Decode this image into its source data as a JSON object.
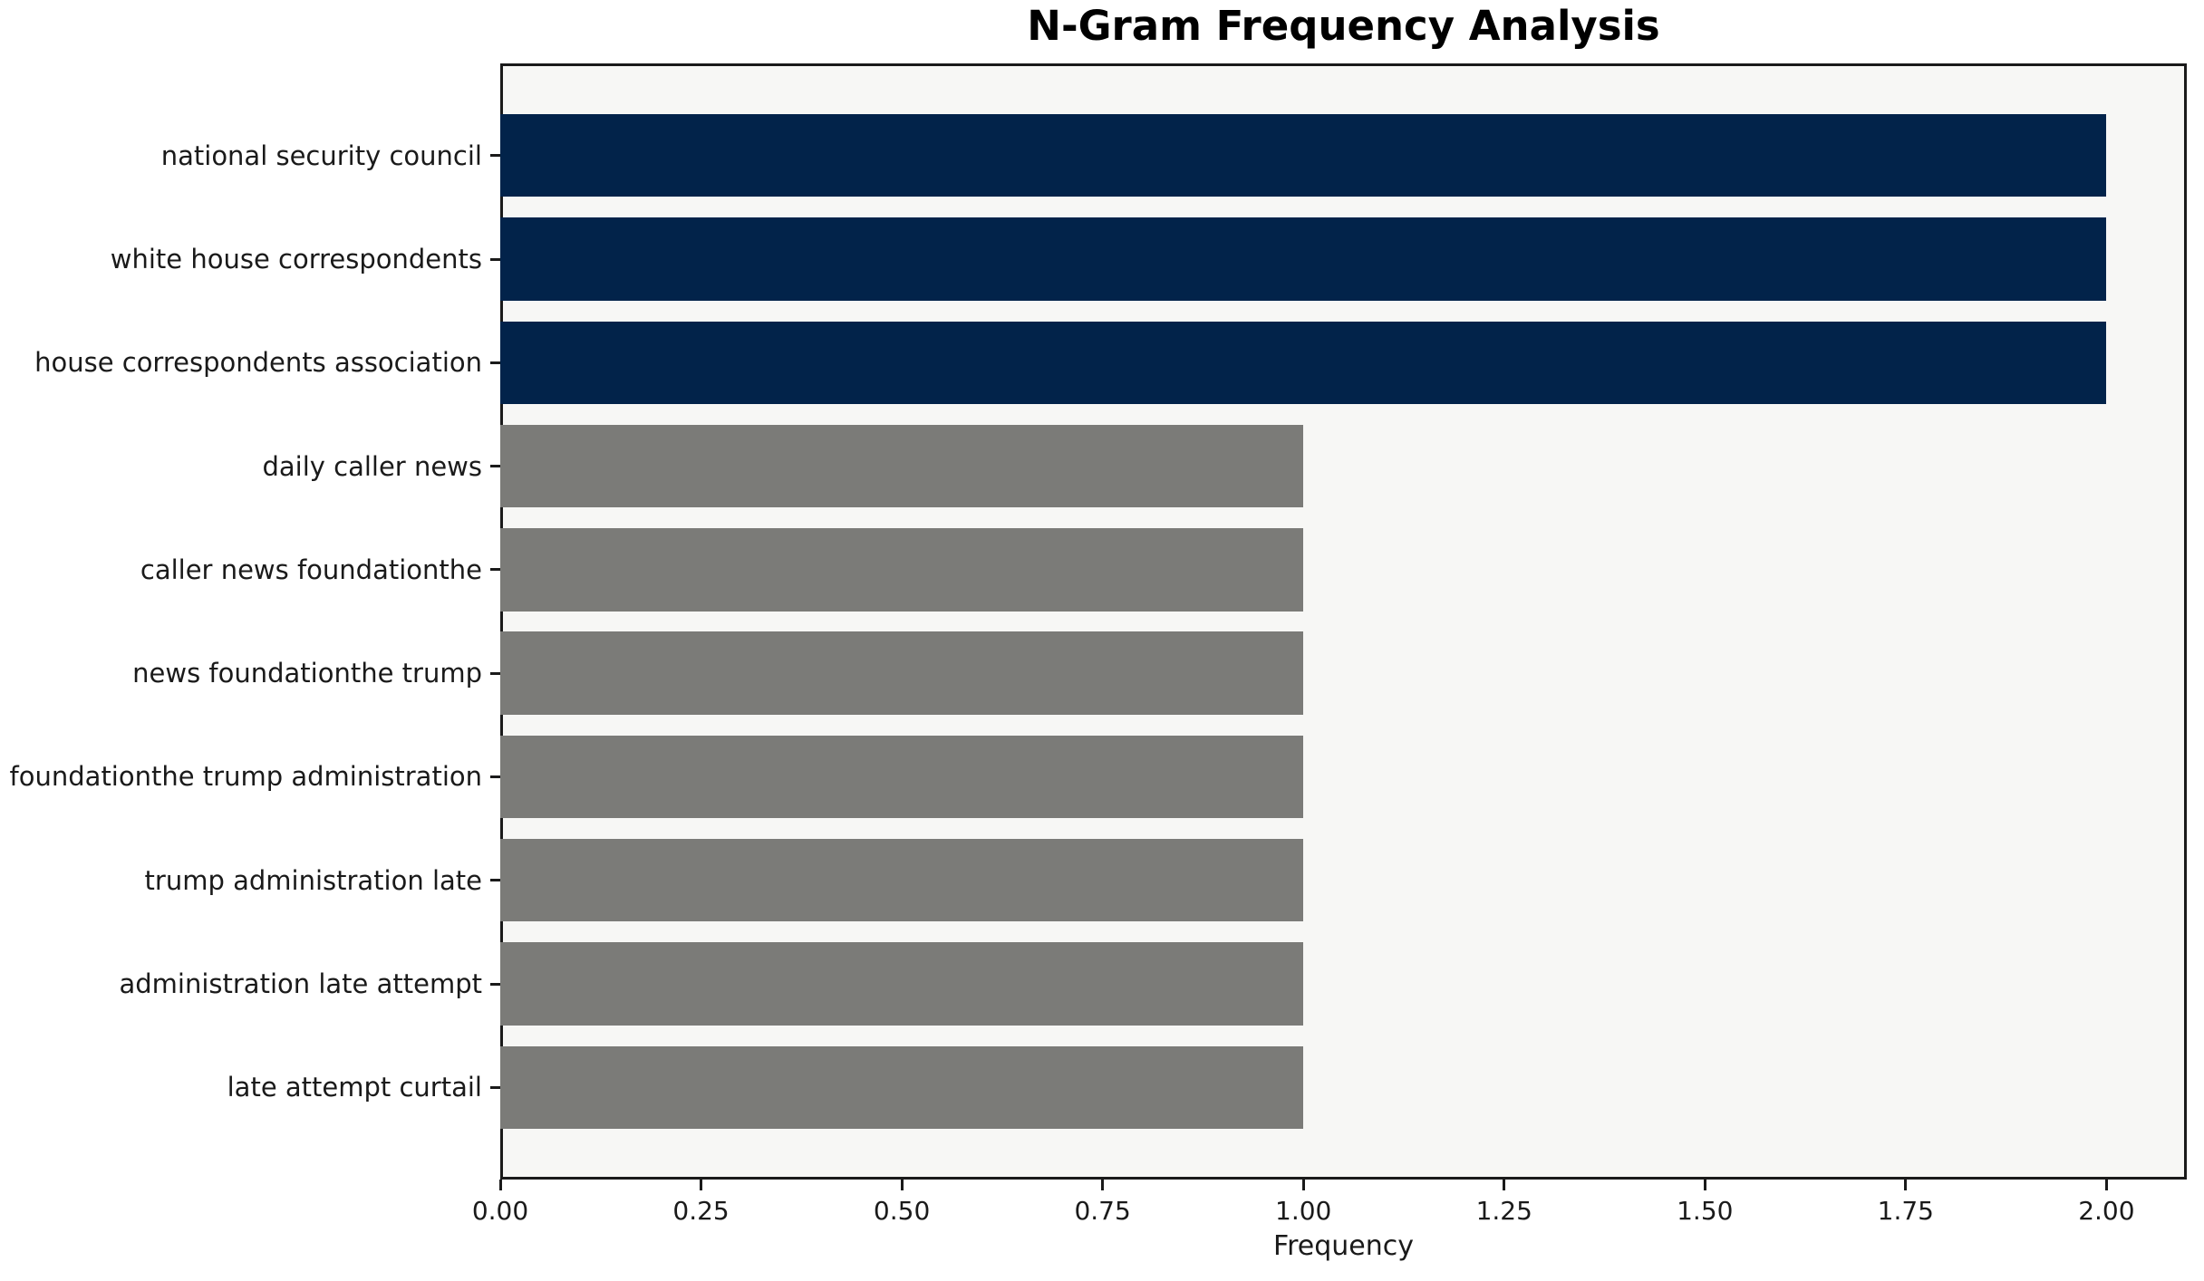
{
  "chart": {
    "title": "N-Gram Frequency Analysis",
    "xlabel": "Frequency"
  },
  "chart_data": {
    "type": "bar",
    "orientation": "horizontal",
    "title": "N-Gram Frequency Analysis",
    "xlabel": "Frequency",
    "ylabel": "",
    "categories": [
      "national security council",
      "white house correspondents",
      "house correspondents association",
      "daily caller news",
      "caller news foundationthe",
      "news foundationthe trump",
      "foundationthe trump administration",
      "trump administration late",
      "administration late attempt",
      "late attempt curtail"
    ],
    "values": [
      2,
      2,
      2,
      1,
      1,
      1,
      1,
      1,
      1,
      1
    ],
    "bar_colors": [
      "#02234a",
      "#02234a",
      "#02234a",
      "#7b7b78",
      "#7b7b78",
      "#7b7b78",
      "#7b7b78",
      "#7b7b78",
      "#7b7b78",
      "#7b7b78"
    ],
    "xlim": [
      0,
      2.1
    ],
    "xticks": [
      0,
      0.25,
      0.5,
      0.75,
      1.0,
      1.25,
      1.5,
      1.75,
      2.0
    ],
    "xtick_labels": [
      "0.00",
      "0.25",
      "0.50",
      "0.75",
      "1.00",
      "1.25",
      "1.50",
      "1.75",
      "2.00"
    ],
    "grid": "off",
    "legend": "none",
    "colors": {
      "high_frequency_bar": "#02234a",
      "low_frequency_bar": "#7b7b78",
      "plot_background": "#f7f7f5",
      "figure_background": "#ffffff",
      "axis_line": "#1a1a1a",
      "text": "#000000"
    }
  }
}
